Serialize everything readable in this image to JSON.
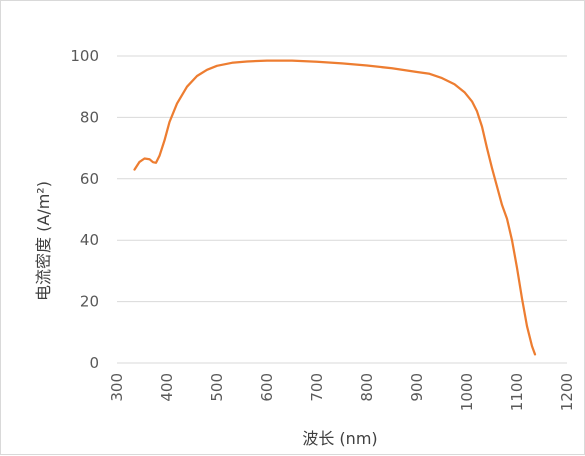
{
  "chart_data": {
    "type": "line",
    "title": "",
    "xlabel": "波长 (nm)",
    "ylabel": "电流密度 (A/m²)",
    "xlim": [
      300,
      1200
    ],
    "ylim": [
      0,
      100
    ],
    "x_ticks": [
      "300",
      "400",
      "500",
      "600",
      "700",
      "800",
      "900",
      "1000",
      "1100",
      "1200"
    ],
    "y_ticks": [
      "0",
      "20",
      "40",
      "60",
      "80",
      "100"
    ],
    "grid": "horizontal",
    "legend": "none",
    "series": [
      {
        "color": "#ed7d31",
        "points": [
          [
            335,
            63
          ],
          [
            345,
            65.5
          ],
          [
            355,
            66.6
          ],
          [
            365,
            66.4
          ],
          [
            372,
            65.4
          ],
          [
            378,
            65.2
          ],
          [
            385,
            67.5
          ],
          [
            395,
            72.5
          ],
          [
            405,
            78.5
          ],
          [
            420,
            84.5
          ],
          [
            440,
            90
          ],
          [
            460,
            93.5
          ],
          [
            480,
            95.5
          ],
          [
            500,
            96.8
          ],
          [
            530,
            97.8
          ],
          [
            560,
            98.2
          ],
          [
            600,
            98.5
          ],
          [
            650,
            98.5
          ],
          [
            700,
            98.1
          ],
          [
            750,
            97.6
          ],
          [
            800,
            96.9
          ],
          [
            850,
            96
          ],
          [
            900,
            94.8
          ],
          [
            925,
            94.2
          ],
          [
            950,
            92.8
          ],
          [
            975,
            90.8
          ],
          [
            995,
            88.2
          ],
          [
            1010,
            85.2
          ],
          [
            1020,
            82
          ],
          [
            1030,
            77
          ],
          [
            1040,
            70
          ],
          [
            1050,
            63.5
          ],
          [
            1060,
            57.5
          ],
          [
            1070,
            51.5
          ],
          [
            1080,
            47
          ],
          [
            1090,
            40
          ],
          [
            1100,
            31
          ],
          [
            1110,
            21
          ],
          [
            1120,
            12
          ],
          [
            1130,
            5.5
          ],
          [
            1136,
            2.8
          ]
        ]
      }
    ]
  }
}
